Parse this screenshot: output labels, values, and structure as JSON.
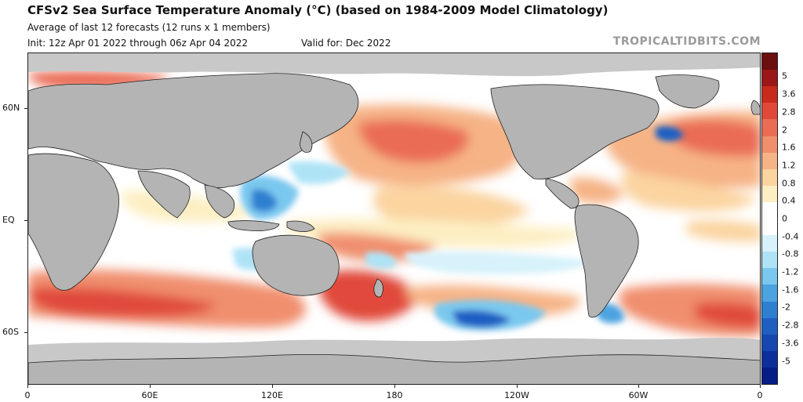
{
  "header": {
    "title": "CFSv2 Sea Surface Temperature Anomaly (°C) (based on 1984-2009 Model Climatology)",
    "subtitle": "Average of last 12 forecasts (12 runs x 1 members)",
    "init": "Init: 12z Apr 01 2022 through 06z Apr 04 2022",
    "valid": "Valid for: Dec 2022",
    "brand": "TROPICALTIDBITS.COM"
  },
  "map": {
    "lat_labels": [
      "60N",
      "EQ",
      "60S"
    ],
    "lon_labels": [
      "0",
      "60E",
      "120E",
      "180",
      "120W",
      "60W",
      "0"
    ],
    "colors": {
      "ocean_neutral": "#ffffff",
      "land": "#b4b4b4",
      "sea_ice": "#c8c8c8"
    },
    "features": {
      "warm_north_pacific": "warm",
      "warm_southern_ocean_band": "warm",
      "cool_central_south_pacific": "cool",
      "cool_western_pacific_maritime": "cool",
      "cool_northwest_atlantic_spot": "cool"
    }
  },
  "colorbar": {
    "labels": [
      "5",
      "3.6",
      "2.8",
      "2",
      "1.6",
      "1.2",
      "0.8",
      "0.4",
      "0",
      "-0.4",
      "-0.8",
      "-1.2",
      "-1.6",
      "-2",
      "-2.8",
      "-3.6",
      "-5"
    ],
    "colors": [
      "#6b0f0f",
      "#9b1616",
      "#c92a1e",
      "#e0493a",
      "#ea6c55",
      "#f08f6e",
      "#f6b386",
      "#fbd4a0",
      "#fdefc3",
      "#ffffff",
      "#ffffff",
      "#d7f2fb",
      "#aee3f6",
      "#7ac8ef",
      "#4ba3e0",
      "#2f7fd0",
      "#1f5fc2",
      "#1646b0",
      "#0d2f9c",
      "#061c86"
    ]
  }
}
